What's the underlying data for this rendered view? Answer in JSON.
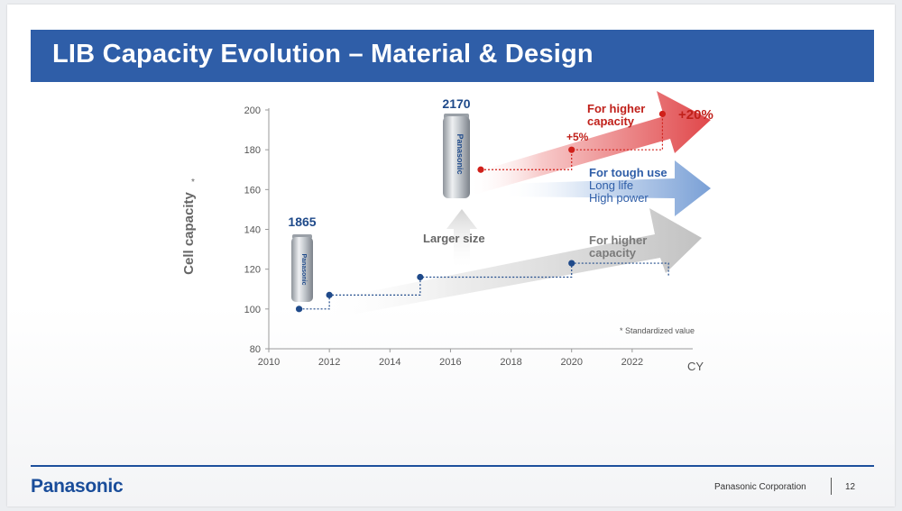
{
  "slide": {
    "title": "LIB Capacity Evolution – Material & Design",
    "footer": {
      "logo_text": "Panasonic",
      "corporation": "Panasonic Corporation",
      "page_number": "12"
    }
  },
  "chart_data": {
    "type": "line",
    "ylabel": "Cell capacity",
    "ylabel_mark": "*",
    "xlabel": "CY",
    "xlim": [
      2010,
      2024
    ],
    "ylim": [
      80,
      200
    ],
    "x_ticks": [
      2010,
      2012,
      2014,
      2016,
      2018,
      2020,
      2022
    ],
    "y_ticks": [
      80,
      100,
      120,
      140,
      160,
      180,
      200
    ],
    "footnote": "* Standardized value",
    "series": [
      {
        "color": "#1f4a8a",
        "points": [
          {
            "x": 2011,
            "y": 100
          },
          {
            "x": 2012,
            "y": 107
          },
          {
            "x": 2015,
            "y": 116
          },
          {
            "x": 2020,
            "y": 123
          }
        ],
        "end_x": 2023.2,
        "end_y": 116
      },
      {
        "color": "#d0201a",
        "points": [
          {
            "x": 2017,
            "y": 170
          },
          {
            "x": 2020,
            "y": 180
          },
          {
            "x": 2023,
            "y": 198
          }
        ]
      }
    ],
    "cells": [
      {
        "label": "1865",
        "brand": "Panasonic",
        "color": "#1f4a8a"
      },
      {
        "label": "2170",
        "brand": "Panasonic",
        "color": "#1f4a8a"
      }
    ],
    "annotations": {
      "larger_size": "Larger size",
      "red_arrow_lines": [
        "For higher",
        "capacity"
      ],
      "red_arrow_color": "#c0201a",
      "plus5": "+5%",
      "plus20": "+20%",
      "blue_arrow_lines": [
        "For tough use",
        "Long life",
        "High power"
      ],
      "blue_arrow_color": "#2f5ea8",
      "gray_arrow_lines": [
        "For higher",
        "capacity"
      ],
      "gray_arrow_color": "#7a7a7a"
    }
  }
}
